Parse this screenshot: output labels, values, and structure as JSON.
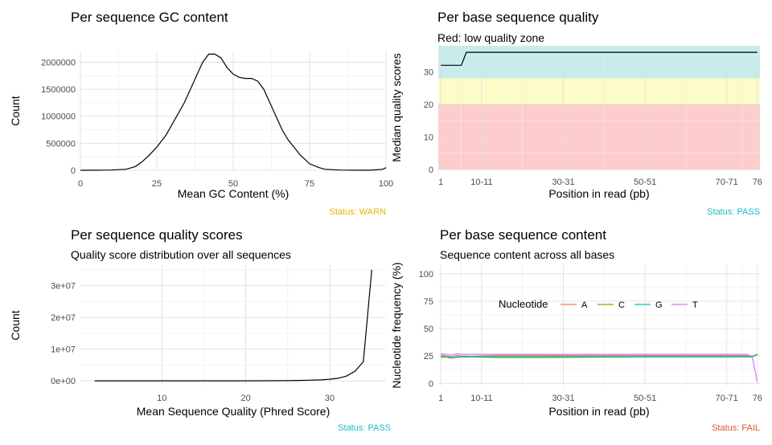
{
  "panels": {
    "gc": {
      "title": "Per sequence GC content",
      "status": "Status: WARN",
      "status_color": "#e6b400"
    },
    "pbq": {
      "title": "Per base sequence quality",
      "subtitle": "Red: low quality zone",
      "status": "Status: PASS",
      "status_color": "#1fb7c4"
    },
    "psq": {
      "title": "Per sequence quality scores",
      "subtitle": "Quality score distribution over all sequences",
      "status": "Status: PASS",
      "status_color": "#1fb7c4"
    },
    "pbc": {
      "title": "Per base sequence content",
      "subtitle": "Sequence content across all bases",
      "status": "Status: FAIL",
      "status_color": "#e0552b"
    }
  },
  "chart_data": [
    {
      "id": "gc",
      "type": "line",
      "title": "Per sequence GC content",
      "xlabel": "Mean GC Content (%)",
      "ylabel": "Count",
      "xlim": [
        0,
        100
      ],
      "ylim": [
        0,
        2200000
      ],
      "xticks": [
        0,
        25,
        50,
        75,
        100
      ],
      "xtick_labels": [
        "0",
        "25",
        "50",
        "75",
        "100"
      ],
      "yticks": [
        0,
        500000,
        1000000,
        1500000,
        2000000
      ],
      "ytick_labels": [
        "0",
        "500000",
        "1000000",
        "1500000",
        "2000000"
      ],
      "grid": true,
      "line_color": "#000000",
      "x": [
        0,
        5,
        10,
        15,
        18,
        20,
        22,
        25,
        28,
        30,
        32,
        34,
        36,
        38,
        40,
        42,
        44,
        46,
        48,
        50,
        52,
        54,
        56,
        58,
        60,
        62,
        64,
        66,
        68,
        70,
        72,
        75,
        78,
        80,
        85,
        90,
        95,
        99,
        100
      ],
      "y": [
        0,
        2000,
        5000,
        20000,
        70000,
        150000,
        250000,
        430000,
        650000,
        850000,
        1050000,
        1250000,
        1500000,
        1750000,
        2000000,
        2150000,
        2150000,
        2080000,
        1900000,
        1780000,
        1720000,
        1700000,
        1700000,
        1650000,
        1500000,
        1250000,
        1000000,
        750000,
        560000,
        420000,
        280000,
        120000,
        50000,
        20000,
        5000,
        2000,
        1000,
        20000,
        50000
      ]
    },
    {
      "id": "pbq",
      "type": "line",
      "title": "Per base sequence quality",
      "subtitle": "Red: low quality zone",
      "xlabel": "Position in read (pb)",
      "ylabel": "Median quality scores",
      "xticks_index": [
        1,
        9,
        25,
        41,
        57,
        63
      ],
      "xtick_labels": [
        "1",
        "10-11",
        "30-31",
        "50-51",
        "70-71",
        "76"
      ],
      "xlim": [
        0.5,
        63.5
      ],
      "ylim": [
        0,
        38
      ],
      "yticks": [
        0,
        10,
        20,
        30
      ],
      "ytick_labels": [
        "0",
        "10",
        "20",
        "30"
      ],
      "grid": true,
      "bands": [
        {
          "ymin": 0,
          "ymax": 20,
          "color": "#ffcccc"
        },
        {
          "ymin": 20,
          "ymax": 28,
          "color": "#fcfcc6"
        },
        {
          "ymin": 28,
          "ymax": 38,
          "color": "#c7ecec"
        }
      ],
      "line_color": "#000000",
      "x": [
        1,
        2,
        3,
        4,
        5,
        6,
        63
      ],
      "y": [
        32,
        32,
        32,
        32,
        32,
        36,
        36
      ]
    },
    {
      "id": "psq",
      "type": "line",
      "title": "Per sequence quality scores",
      "subtitle": "Quality score distribution over all sequences",
      "xlabel": "Mean Sequence Quality (Phred Score)",
      "ylabel": "Count",
      "xlim": [
        0.3,
        36.7
      ],
      "ylim": [
        -1500000,
        36500000
      ],
      "xticks": [
        10,
        20,
        30
      ],
      "xtick_labels": [
        "10",
        "20",
        "30"
      ],
      "yticks": [
        0,
        10000000,
        20000000,
        30000000
      ],
      "ytick_labels": [
        "0e+00",
        "1e+07",
        "2e+07",
        "3e+07"
      ],
      "grid": true,
      "line_color": "#000000",
      "x": [
        2,
        10,
        15,
        20,
        25,
        27,
        29,
        30,
        31,
        32,
        33,
        34,
        35
      ],
      "y": [
        0,
        0,
        0,
        0,
        50000,
        150000,
        300000,
        500000,
        800000,
        1500000,
        3000000,
        6000000,
        35000000
      ]
    },
    {
      "id": "pbc",
      "type": "line",
      "title": "Per base sequence content",
      "subtitle": "Sequence content across all bases",
      "xlabel": "Position in read (pb)",
      "ylabel": "Nucleotide frequency (%)",
      "xticks_index": [
        1,
        9,
        25,
        41,
        57,
        63
      ],
      "xtick_labels": [
        "1",
        "10-11",
        "30-31",
        "50-51",
        "70-71",
        "76"
      ],
      "xlim": [
        0.5,
        63.5
      ],
      "ylim": [
        -2,
        108
      ],
      "yticks": [
        0,
        25,
        50,
        75,
        100
      ],
      "ytick_labels": [
        "0",
        "25",
        "50",
        "75",
        "100"
      ],
      "grid": true,
      "legend": {
        "title": "Nucleotide",
        "position": "inside-top-left"
      },
      "series": [
        {
          "name": "A",
          "color": "#f8766d",
          "x": [
            1,
            2,
            3,
            4,
            5,
            6,
            7,
            8,
            12,
            20,
            40,
            60,
            61,
            62,
            63
          ],
          "y": [
            26,
            25,
            24.5,
            25.5,
            25,
            25,
            24.5,
            25,
            25.5,
            25.5,
            25.5,
            25.5,
            25.5,
            25,
            26
          ]
        },
        {
          "name": "C",
          "color": "#7cae00",
          "x": [
            1,
            2,
            3,
            4,
            5,
            6,
            7,
            8,
            12,
            20,
            40,
            60,
            61,
            62,
            63
          ],
          "y": [
            23.5,
            24,
            23,
            23.5,
            24,
            24,
            24,
            24,
            23.5,
            23.5,
            24,
            24,
            24,
            24,
            27
          ]
        },
        {
          "name": "G",
          "color": "#00bfc4",
          "x": [
            1,
            2,
            3,
            4,
            5,
            6,
            7,
            8,
            12,
            20,
            40,
            60,
            61,
            62,
            63
          ],
          "y": [
            24.5,
            25,
            23.5,
            24,
            24.5,
            24.5,
            24.5,
            24.5,
            24.5,
            24.5,
            24.5,
            24.5,
            24.5,
            25,
            26
          ]
        },
        {
          "name": "T",
          "color": "#c77cff",
          "x": [
            1,
            2,
            3,
            4,
            5,
            6,
            7,
            8,
            12,
            20,
            40,
            60,
            61,
            62,
            63
          ],
          "y": [
            27,
            26.5,
            26,
            27,
            26.5,
            26.5,
            26.5,
            26.5,
            26.5,
            26.5,
            26.5,
            26.5,
            26.5,
            24,
            1
          ]
        }
      ]
    }
  ]
}
